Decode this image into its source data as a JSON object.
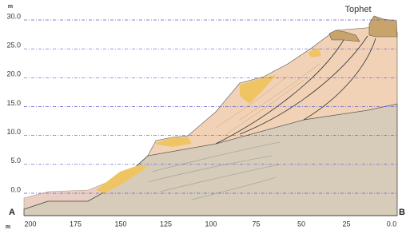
{
  "y_axis": {
    "unit": "m",
    "labels": [
      "30.0",
      "25.0",
      "20.0",
      "15.0",
      "10.0",
      "5.0",
      "0.0"
    ]
  },
  "x_axis": {
    "unit": "m",
    "labels": [
      "200",
      "175",
      "150",
      "125",
      "100",
      "75",
      "50",
      "25",
      "0.0"
    ]
  },
  "labels": {
    "start": "A",
    "end": "B",
    "site": "Tophet"
  }
}
